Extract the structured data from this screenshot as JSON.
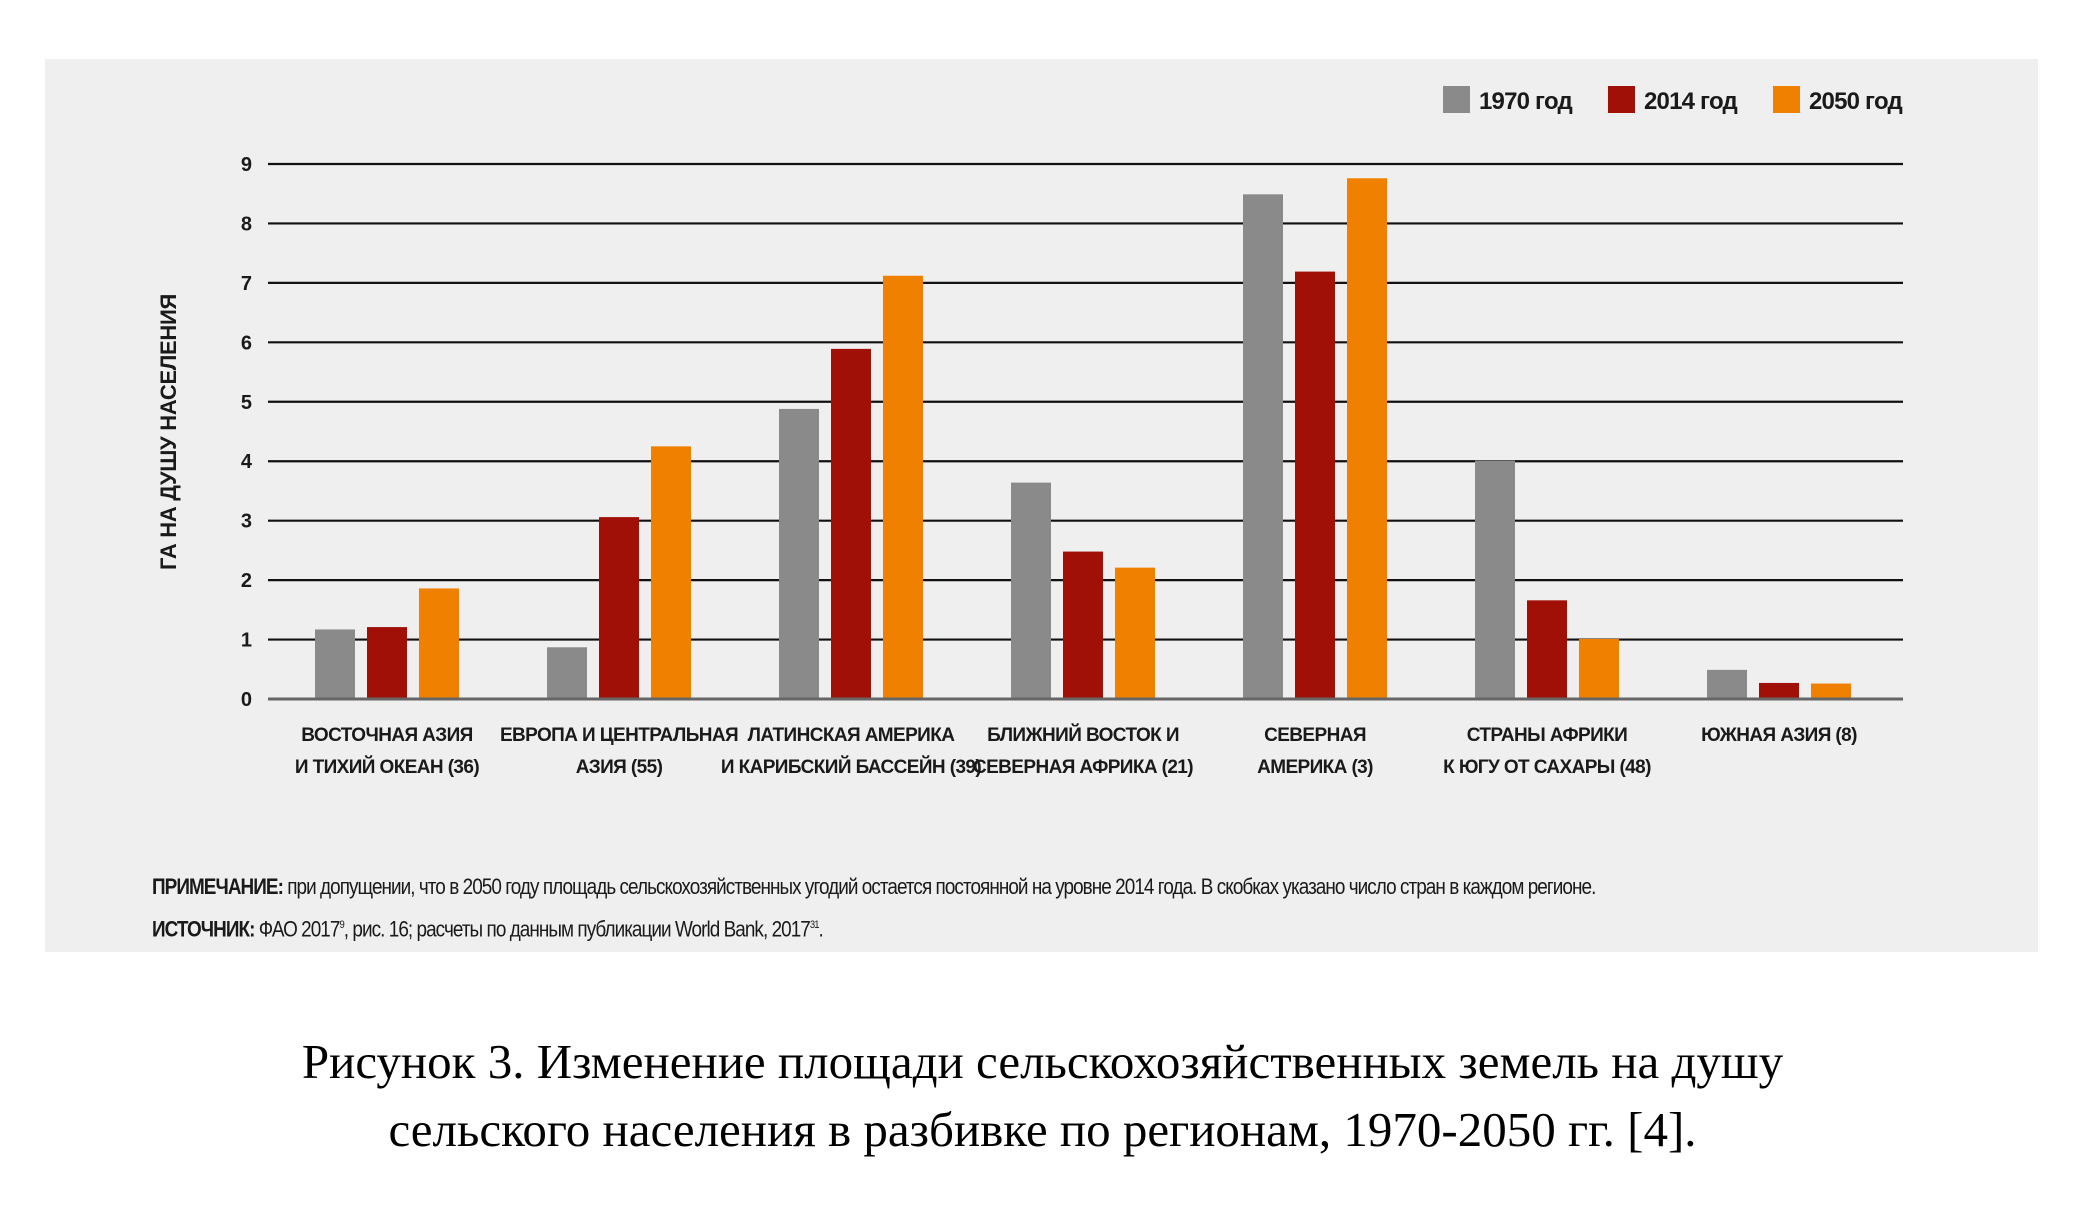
{
  "chart_data": {
    "type": "bar",
    "title": "",
    "xlabel": "",
    "ylabel": "ГА НА ДУШУ НАСЕЛЕНИЯ",
    "ylim": [
      0,
      9
    ],
    "yticks": [
      "0",
      "1",
      "2",
      "3",
      "4",
      "5",
      "6",
      "7",
      "8",
      "9"
    ],
    "grid": true,
    "legend_position": "top-right",
    "categories": [
      [
        "ВОСТОЧНАЯ АЗИЯ",
        "И ТИХИЙ ОКЕАН (36)"
      ],
      [
        "ЕВРОПА И ЦЕНТРАЛЬНАЯ",
        "АЗИЯ (55)"
      ],
      [
        "ЛАТИНСКАЯ АМЕРИКА",
        "И КАРИБСКИЙ БАССЕЙН (39)"
      ],
      [
        "БЛИЖНИЙ ВОСТОК И",
        "СЕВЕРНАЯ АФРИКА (21)"
      ],
      [
        "СЕВЕРНАЯ",
        "АМЕРИКА (3)"
      ],
      [
        "СТРАНЫ АФРИКИ",
        "К ЮГУ ОТ САХАРЫ (48)"
      ],
      [
        "ЮЖНАЯ АЗИЯ (8)"
      ]
    ],
    "series": [
      {
        "name": "1970 год",
        "color": "#8a8a8a",
        "values": [
          1.17,
          0.87,
          4.88,
          3.64,
          8.49,
          4.01,
          0.49
        ]
      },
      {
        "name": "2014 год",
        "color": "#a01006",
        "values": [
          1.21,
          3.06,
          5.89,
          2.48,
          7.19,
          1.66,
          0.27
        ]
      },
      {
        "name": "2050 год",
        "color": "#f08000",
        "values": [
          1.86,
          4.25,
          7.12,
          2.21,
          8.76,
          1.01,
          0.26
        ]
      }
    ]
  },
  "notes": {
    "note_label": "ПРИМЕЧАНИЕ:",
    "note_text": " при допущении, что в 2050 году площадь сельскохозяйственных угодий остается постоянной на уровне 2014 года. В скобках указано число стран в каждом регионе.",
    "source_label": "ИСТОЧНИК:",
    "source_text_1": " ФАО 2017",
    "source_sup_1": "9",
    "source_text_2": ", рис. 16; расчеты по данным публикации World Bank, 2017",
    "source_sup_2": "31",
    "source_text_3": "."
  },
  "caption": {
    "line1": "Рисунок 3. Изменение площади сельскохозяйственных земель на душу",
    "line2": "сельского населения в разбивке по регионам, 1970-2050 гг. [4]."
  }
}
